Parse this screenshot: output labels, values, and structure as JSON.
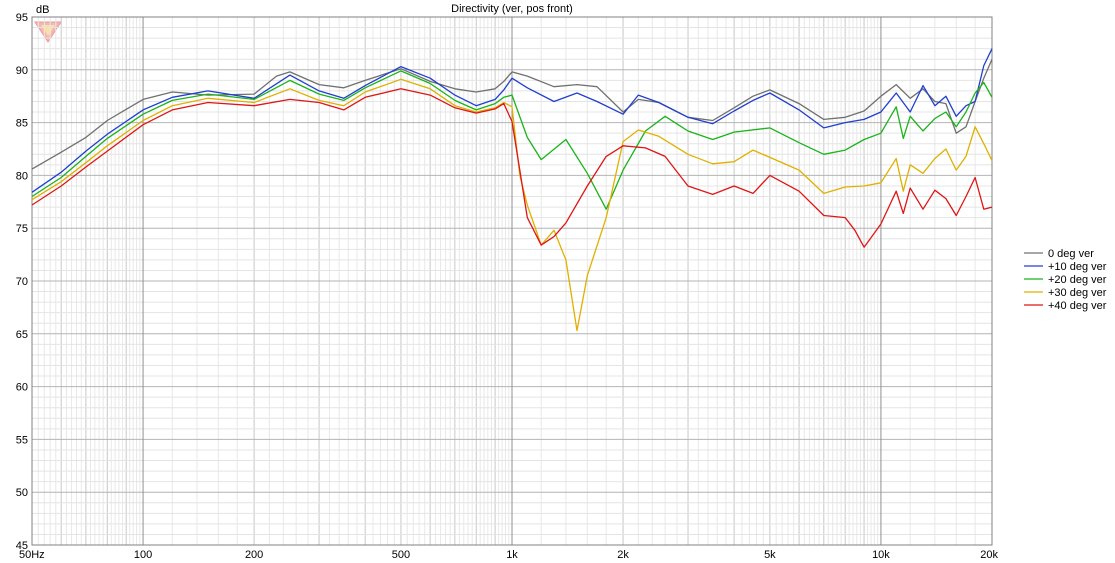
{
  "chart_data": {
    "type": "line",
    "title": "Directivity (ver, pos front)",
    "ylabel": "dB",
    "xlabel": "",
    "x_scale": "log",
    "xlim": [
      50,
      20000
    ],
    "ylim": [
      45,
      95
    ],
    "y_ticks": [
      95,
      90,
      85,
      80,
      75,
      70,
      65,
      60,
      55,
      50,
      45
    ],
    "x_ticks": [
      {
        "value": 50,
        "label": "50Hz"
      },
      {
        "value": 100,
        "label": "100"
      },
      {
        "value": 200,
        "label": "200"
      },
      {
        "value": 500,
        "label": "500"
      },
      {
        "value": 1000,
        "label": "1k"
      },
      {
        "value": 2000,
        "label": "2k"
      },
      {
        "value": 5000,
        "label": "5k"
      },
      {
        "value": 10000,
        "label": "10k"
      },
      {
        "value": 20000,
        "label": "20k"
      }
    ],
    "grid": true,
    "legend_position": "right",
    "series": [
      {
        "name": "0 deg ver",
        "color": "#707070",
        "points": [
          [
            50,
            80.6
          ],
          [
            60,
            82.2
          ],
          [
            70,
            83.6
          ],
          [
            80,
            85.2
          ],
          [
            100,
            87.2
          ],
          [
            120,
            87.9
          ],
          [
            150,
            87.6
          ],
          [
            200,
            87.7
          ],
          [
            230,
            89.4
          ],
          [
            250,
            89.8
          ],
          [
            300,
            88.6
          ],
          [
            350,
            88.3
          ],
          [
            400,
            89.0
          ],
          [
            500,
            90.1
          ],
          [
            600,
            88.9
          ],
          [
            700,
            88.2
          ],
          [
            800,
            87.9
          ],
          [
            900,
            88.2
          ],
          [
            950,
            88.9
          ],
          [
            1000,
            89.8
          ],
          [
            1100,
            89.4
          ],
          [
            1300,
            88.4
          ],
          [
            1500,
            88.6
          ],
          [
            1700,
            88.4
          ],
          [
            2000,
            86.0
          ],
          [
            2200,
            87.2
          ],
          [
            2500,
            86.9
          ],
          [
            3000,
            85.5
          ],
          [
            3500,
            85.2
          ],
          [
            4000,
            86.4
          ],
          [
            4500,
            87.5
          ],
          [
            5000,
            88.1
          ],
          [
            6000,
            86.8
          ],
          [
            7000,
            85.3
          ],
          [
            8000,
            85.5
          ],
          [
            9000,
            86.1
          ],
          [
            10000,
            87.5
          ],
          [
            11000,
            88.6
          ],
          [
            12000,
            87.3
          ],
          [
            13000,
            88.2
          ],
          [
            14000,
            87.0
          ],
          [
            15000,
            86.8
          ],
          [
            16000,
            84.0
          ],
          [
            17000,
            84.6
          ],
          [
            18000,
            87.0
          ],
          [
            19000,
            89.2
          ],
          [
            20000,
            91.0
          ]
        ]
      },
      {
        "name": "+10 deg ver",
        "color": "#1f3fd0",
        "points": [
          [
            50,
            78.4
          ],
          [
            60,
            80.3
          ],
          [
            70,
            82.3
          ],
          [
            80,
            83.9
          ],
          [
            100,
            86.2
          ],
          [
            120,
            87.4
          ],
          [
            150,
            88.0
          ],
          [
            200,
            87.3
          ],
          [
            250,
            89.5
          ],
          [
            300,
            88.0
          ],
          [
            350,
            87.3
          ],
          [
            400,
            88.5
          ],
          [
            500,
            90.3
          ],
          [
            600,
            89.2
          ],
          [
            700,
            87.6
          ],
          [
            800,
            86.6
          ],
          [
            900,
            87.2
          ],
          [
            950,
            88.1
          ],
          [
            1000,
            89.2
          ],
          [
            1100,
            88.3
          ],
          [
            1300,
            87.0
          ],
          [
            1500,
            87.8
          ],
          [
            1700,
            87.0
          ],
          [
            2000,
            85.8
          ],
          [
            2200,
            87.6
          ],
          [
            2500,
            86.9
          ],
          [
            3000,
            85.5
          ],
          [
            3500,
            84.9
          ],
          [
            4000,
            86.1
          ],
          [
            4500,
            87.1
          ],
          [
            5000,
            87.8
          ],
          [
            6000,
            86.2
          ],
          [
            7000,
            84.5
          ],
          [
            8000,
            85.0
          ],
          [
            9000,
            85.3
          ],
          [
            10000,
            86.0
          ],
          [
            11000,
            87.8
          ],
          [
            12000,
            86.0
          ],
          [
            13000,
            88.5
          ],
          [
            14000,
            86.6
          ],
          [
            15000,
            87.5
          ],
          [
            16000,
            85.6
          ],
          [
            17000,
            86.6
          ],
          [
            18000,
            87.0
          ],
          [
            19000,
            90.4
          ],
          [
            20000,
            92.0
          ]
        ]
      },
      {
        "name": "+20 deg ver",
        "color": "#19b419",
        "points": [
          [
            50,
            78.0
          ],
          [
            60,
            79.8
          ],
          [
            70,
            81.8
          ],
          [
            80,
            83.5
          ],
          [
            100,
            85.8
          ],
          [
            120,
            87.1
          ],
          [
            150,
            87.7
          ],
          [
            200,
            87.2
          ],
          [
            250,
            89.0
          ],
          [
            300,
            87.7
          ],
          [
            350,
            87.1
          ],
          [
            400,
            88.3
          ],
          [
            500,
            89.9
          ],
          [
            600,
            88.7
          ],
          [
            700,
            87.1
          ],
          [
            800,
            86.2
          ],
          [
            900,
            86.8
          ],
          [
            950,
            87.4
          ],
          [
            1000,
            87.6
          ],
          [
            1100,
            83.6
          ],
          [
            1200,
            81.5
          ],
          [
            1400,
            83.4
          ],
          [
            1600,
            80.2
          ],
          [
            1800,
            76.8
          ],
          [
            2000,
            80.5
          ],
          [
            2300,
            84.2
          ],
          [
            2600,
            85.6
          ],
          [
            3000,
            84.2
          ],
          [
            3500,
            83.4
          ],
          [
            4000,
            84.1
          ],
          [
            5000,
            84.5
          ],
          [
            6000,
            83.1
          ],
          [
            7000,
            82.0
          ],
          [
            8000,
            82.4
          ],
          [
            9000,
            83.4
          ],
          [
            10000,
            84.0
          ],
          [
            11000,
            86.5
          ],
          [
            11500,
            83.5
          ],
          [
            12000,
            85.6
          ],
          [
            13000,
            84.2
          ],
          [
            14000,
            85.4
          ],
          [
            15000,
            86.0
          ],
          [
            16000,
            84.6
          ],
          [
            17000,
            86.0
          ],
          [
            18000,
            87.8
          ],
          [
            19000,
            88.8
          ],
          [
            20000,
            87.4
          ]
        ]
      },
      {
        "name": "+30 deg ver",
        "color": "#e0b000",
        "points": [
          [
            50,
            77.7
          ],
          [
            60,
            79.4
          ],
          [
            70,
            81.2
          ],
          [
            80,
            82.8
          ],
          [
            100,
            85.2
          ],
          [
            120,
            86.6
          ],
          [
            150,
            87.3
          ],
          [
            200,
            86.9
          ],
          [
            250,
            88.2
          ],
          [
            300,
            87.1
          ],
          [
            350,
            86.6
          ],
          [
            400,
            87.9
          ],
          [
            500,
            89.1
          ],
          [
            600,
            88.2
          ],
          [
            700,
            86.6
          ],
          [
            800,
            86.0
          ],
          [
            900,
            86.4
          ],
          [
            950,
            86.9
          ],
          [
            1000,
            86.5
          ],
          [
            1050,
            80.0
          ],
          [
            1100,
            77.2
          ],
          [
            1200,
            73.4
          ],
          [
            1300,
            74.8
          ],
          [
            1400,
            72.0
          ],
          [
            1500,
            65.3
          ],
          [
            1600,
            70.5
          ],
          [
            1800,
            76.0
          ],
          [
            2000,
            83.2
          ],
          [
            2200,
            84.3
          ],
          [
            2500,
            83.7
          ],
          [
            3000,
            82.0
          ],
          [
            3500,
            81.1
          ],
          [
            4000,
            81.3
          ],
          [
            4500,
            82.4
          ],
          [
            5000,
            81.7
          ],
          [
            6000,
            80.5
          ],
          [
            7000,
            78.3
          ],
          [
            8000,
            78.9
          ],
          [
            9000,
            79.0
          ],
          [
            10000,
            79.3
          ],
          [
            11000,
            81.6
          ],
          [
            11500,
            78.5
          ],
          [
            12000,
            81.0
          ],
          [
            13000,
            80.2
          ],
          [
            14000,
            81.6
          ],
          [
            15000,
            82.5
          ],
          [
            16000,
            80.5
          ],
          [
            17000,
            81.8
          ],
          [
            18000,
            84.6
          ],
          [
            19000,
            83.0
          ],
          [
            20000,
            81.4
          ]
        ]
      },
      {
        "name": "+40 deg ver",
        "color": "#e01515",
        "points": [
          [
            50,
            77.2
          ],
          [
            60,
            79.0
          ],
          [
            70,
            80.8
          ],
          [
            80,
            82.3
          ],
          [
            100,
            84.8
          ],
          [
            120,
            86.2
          ],
          [
            150,
            86.9
          ],
          [
            200,
            86.6
          ],
          [
            250,
            87.2
          ],
          [
            300,
            86.9
          ],
          [
            350,
            86.2
          ],
          [
            400,
            87.4
          ],
          [
            500,
            88.2
          ],
          [
            600,
            87.6
          ],
          [
            700,
            86.4
          ],
          [
            800,
            85.9
          ],
          [
            900,
            86.3
          ],
          [
            950,
            86.8
          ],
          [
            1000,
            85.1
          ],
          [
            1050,
            80.5
          ],
          [
            1100,
            76.0
          ],
          [
            1200,
            73.4
          ],
          [
            1300,
            74.2
          ],
          [
            1400,
            75.5
          ],
          [
            1600,
            79.0
          ],
          [
            1800,
            81.8
          ],
          [
            2000,
            82.8
          ],
          [
            2300,
            82.6
          ],
          [
            2600,
            81.8
          ],
          [
            3000,
            79.0
          ],
          [
            3500,
            78.2
          ],
          [
            4000,
            79.0
          ],
          [
            4500,
            78.3
          ],
          [
            5000,
            80.0
          ],
          [
            6000,
            78.5
          ],
          [
            7000,
            76.2
          ],
          [
            8000,
            76.0
          ],
          [
            8500,
            74.8
          ],
          [
            9000,
            73.2
          ],
          [
            10000,
            75.4
          ],
          [
            11000,
            78.5
          ],
          [
            11500,
            76.4
          ],
          [
            12000,
            78.8
          ],
          [
            13000,
            76.8
          ],
          [
            14000,
            78.6
          ],
          [
            15000,
            77.8
          ],
          [
            16000,
            76.2
          ],
          [
            17000,
            78.0
          ],
          [
            18000,
            79.8
          ],
          [
            19000,
            76.8
          ],
          [
            20000,
            77.0
          ]
        ]
      }
    ]
  }
}
